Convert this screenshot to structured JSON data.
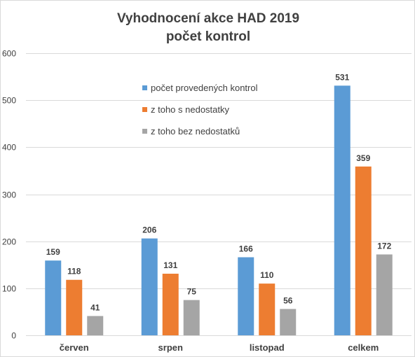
{
  "chart_data": {
    "type": "bar",
    "title": "Vyhodnocení  akce HAD 2019",
    "subtitle": "počet kontrol",
    "categories": [
      "červen",
      "srpen",
      "listopad",
      "celkem"
    ],
    "series": [
      {
        "name": "počet provedených kontrol",
        "color": "#5b9bd5",
        "values": [
          159,
          206,
          166,
          531
        ]
      },
      {
        "name": "z toho s nedostatky",
        "color": "#ed7d31",
        "values": [
          118,
          131,
          110,
          359
        ]
      },
      {
        "name": "z toho bez nedostatků",
        "color": "#a5a5a5",
        "values": [
          41,
          75,
          56,
          172
        ]
      }
    ],
    "ylim": [
      0,
      600
    ],
    "yticks": [
      "0",
      "100",
      "200",
      "300",
      "400",
      "500",
      "600"
    ],
    "grid": true,
    "legend": "upper-center"
  }
}
